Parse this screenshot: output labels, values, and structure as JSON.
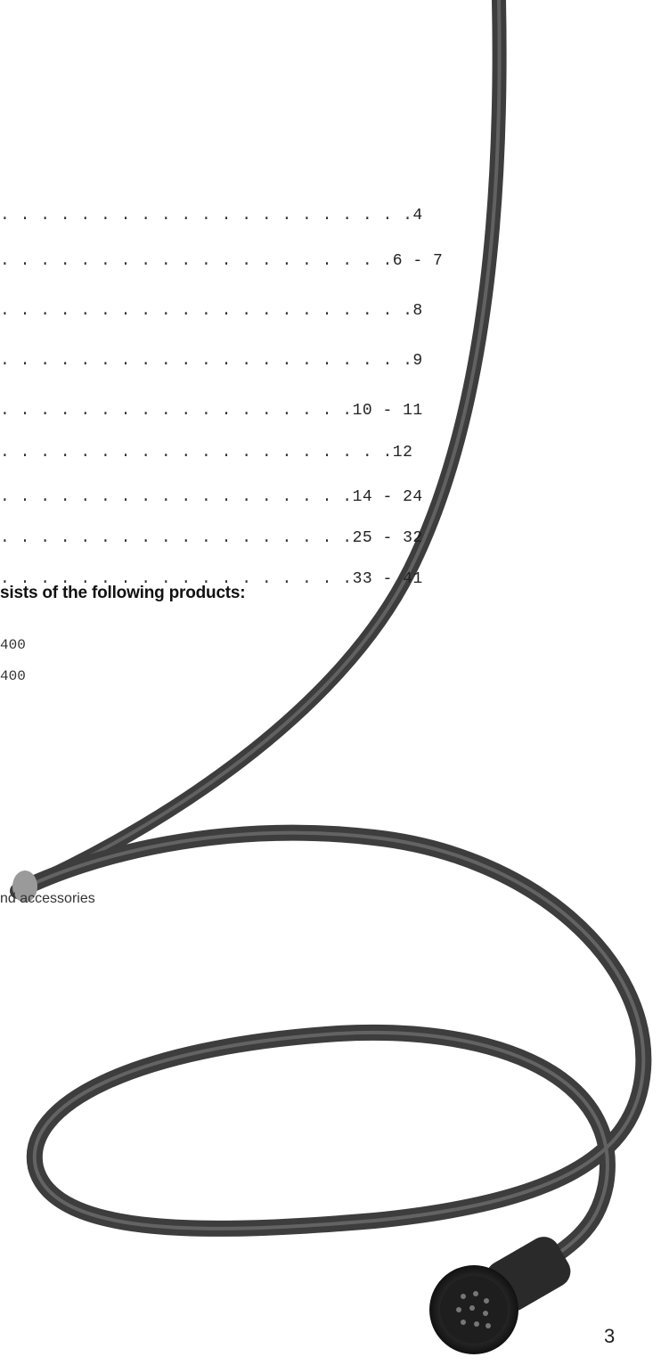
{
  "toc": [
    {
      "dots": ". . . . . . . . . . . . . . . . . . . . .",
      "pages": "4"
    },
    {
      "dots": ". . . . . . . . . . . . . . . . . . . .",
      "pages": "6 - 7"
    },
    {
      "dots": ". . . . . . . . . . . . . . . . . . . . .",
      "pages": "8"
    },
    {
      "dots": ". . . . . . . . . . . . . . . . . . . . .",
      "pages": "9"
    },
    {
      "dots": ". . . . . . . . . . . . . . . . . .",
      "pages": "10 - 11"
    },
    {
      "dots": ". . . . . . . . . . . . . . . . . . . .",
      "pages": "12"
    },
    {
      "dots": ". . . . . . . . . . . . . . . . . .",
      "pages": "14 - 24"
    },
    {
      "dots": ". . . . . . . . . . . . . . . . . .",
      "pages": "25 - 32"
    },
    {
      "dots": ". . . . . . . . . . . . . . . . . .",
      "pages": "33 - 41"
    }
  ],
  "heading": "sists of the following products:",
  "products": [
    "400",
    "400"
  ],
  "tail_text": "nd accessories",
  "page_number": "3",
  "cable_color": "#4a4a4a"
}
